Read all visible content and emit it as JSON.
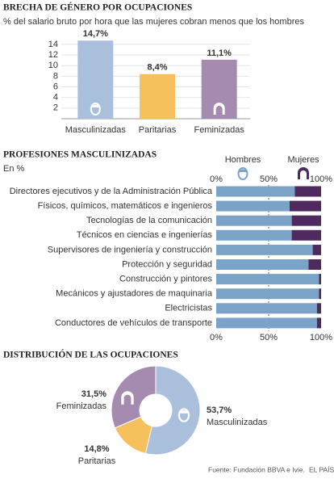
{
  "chart_data": [
    {
      "type": "bar",
      "title": "BRECHA DE GÉNERO POR OCUPACIONES",
      "subtitle": "% del salario bruto por hora que las mujeres cobran menos que los hombres",
      "categories": [
        "Masculinizadas",
        "Paritarias",
        "Feminizadas"
      ],
      "values": [
        14.7,
        8.4,
        11.1
      ],
      "value_labels": [
        "14,7%",
        "8,4%",
        "11,1%"
      ],
      "colors": [
        "#a9bfdc",
        "#f6c05c",
        "#a58bb0"
      ],
      "ylim": [
        0,
        15
      ],
      "yticks": [
        2,
        4,
        6,
        8,
        10,
        12,
        14
      ],
      "grid": true
    },
    {
      "type": "barh",
      "title": "PROFESIONES MASCULINIZADAS",
      "subtitle": "En %",
      "categories": [
        "Directores ejecutivos y de la Administración Pública",
        "Físicos, químicos, matemáticos e ingenieros",
        "Tecnologías de la comunicación",
        "Técnicos en ciencias e ingenierías",
        "Supervisores de ingeniería y construcción",
        "Protección y seguridad",
        "Construcción y pintores",
        "Mecánicos y ajustadores de maquinaria",
        "Electricistas",
        "Conductores de vehículos de transporte"
      ],
      "series": [
        {
          "name": "Hombres",
          "color": "#7ba3c8",
          "values": [
            75,
            70,
            72,
            72,
            92,
            88,
            98,
            98,
            96,
            96
          ]
        },
        {
          "name": "Mujeres",
          "color": "#4e2a5e",
          "values": [
            25,
            30,
            28,
            28,
            8,
            12,
            2,
            2,
            4,
            4
          ]
        }
      ],
      "xlim": [
        0,
        100
      ],
      "xticks": [
        {
          "value": 0,
          "label": "0%"
        },
        {
          "value": 50,
          "label": "50%"
        },
        {
          "value": 100,
          "label": "100%"
        }
      ],
      "stacked": true
    },
    {
      "type": "donut",
      "title": "DISTRIBUCIÓN DE LAS OCUPACIONES",
      "categories": [
        "Masculinizadas",
        "Paritarias",
        "Feminizadas"
      ],
      "values": [
        53.7,
        14.8,
        31.5
      ],
      "value_labels": [
        "53,7%",
        "14,8%",
        "31,5%"
      ],
      "colors": [
        "#a9bfdc",
        "#f6c05c",
        "#a58bb0"
      ]
    }
  ],
  "source": "Fuente: Fundación BBVA e Ivie.",
  "publisher": "EL PAÍS"
}
